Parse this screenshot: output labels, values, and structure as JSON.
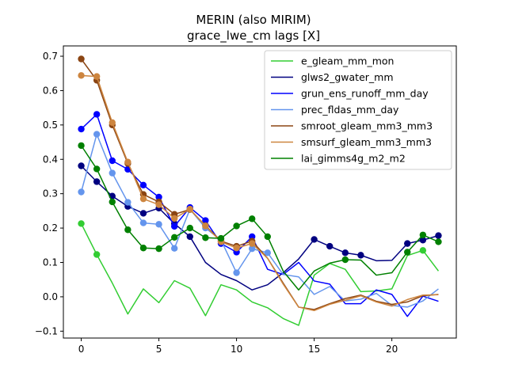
{
  "chart_data": {
    "type": "line",
    "title": "MERIN (also MIRIM)",
    "subtitle": "grace_lwe_cm lags [X]",
    "xlabel": "",
    "ylabel": "",
    "xlim": [
      -1.15,
      24.15
    ],
    "ylim": [
      -0.12,
      0.73
    ],
    "xticks": [
      0,
      5,
      10,
      15,
      20
    ],
    "yticks": [
      -0.1,
      0.0,
      0.1,
      0.2,
      0.3,
      0.4,
      0.5,
      0.6,
      0.7
    ],
    "ytick_labels": [
      "−0.1",
      "0.0",
      "0.1",
      "0.2",
      "0.3",
      "0.4",
      "0.5",
      "0.6",
      "0.7"
    ],
    "legend_position": "upper right",
    "grid": false,
    "x": [
      0,
      1,
      2,
      3,
      4,
      5,
      6,
      7,
      8,
      9,
      10,
      11,
      12,
      13,
      14,
      15,
      16,
      17,
      18,
      19,
      20,
      21,
      22,
      23
    ],
    "series": [
      {
        "name": "e_gleam_mm_mon",
        "color": "#32cd32",
        "values": [
          0.213,
          0.123,
          0.04,
          -0.05,
          0.023,
          -0.017,
          0.047,
          0.025,
          -0.055,
          0.035,
          0.02,
          -0.015,
          -0.032,
          -0.063,
          -0.083,
          0.063,
          0.097,
          0.08,
          0.015,
          0.017,
          0.023,
          0.12,
          0.135,
          0.075
        ],
        "markers": [
          0,
          1,
          22
        ]
      },
      {
        "name": "glws2_gwater_mm",
        "color": "#000080",
        "values": [
          0.381,
          0.335,
          0.293,
          0.263,
          0.243,
          0.258,
          0.213,
          0.175,
          0.1,
          0.065,
          0.047,
          0.02,
          0.035,
          0.07,
          0.11,
          0.167,
          0.147,
          0.128,
          0.121,
          0.105,
          0.106,
          0.155,
          0.165,
          0.178
        ],
        "markers": [
          0,
          1,
          2,
          3,
          4,
          5,
          6,
          7,
          15,
          16,
          17,
          18,
          21,
          22,
          23
        ]
      },
      {
        "name": "grun_ens_runoff_mm_day",
        "color": "#0000ff",
        "values": [
          0.488,
          0.531,
          0.396,
          0.371,
          0.325,
          0.29,
          0.205,
          0.26,
          0.222,
          0.155,
          0.13,
          0.175,
          0.08,
          0.065,
          0.1,
          0.046,
          0.037,
          -0.02,
          -0.02,
          0.02,
          0.007,
          -0.057,
          0.002,
          -0.013
        ],
        "markers": [
          0,
          1,
          2,
          3,
          4,
          5,
          6,
          7,
          8,
          9,
          10,
          11
        ]
      },
      {
        "name": "prec_fldas_mm_day",
        "color": "#6495ed",
        "values": [
          0.305,
          0.473,
          0.36,
          0.275,
          0.215,
          0.211,
          0.141,
          0.255,
          0.2,
          0.165,
          0.07,
          0.14,
          0.128,
          0.065,
          0.058,
          0.007,
          0.03,
          -0.012,
          -0.007,
          0.01,
          -0.025,
          -0.03,
          -0.012,
          0.023
        ],
        "markers": [
          0,
          1,
          2,
          3,
          4,
          5,
          6,
          7,
          8,
          9,
          10,
          11,
          12
        ]
      },
      {
        "name": "smroot_gleam_mm3_mm3",
        "color": "#8b4513",
        "values": [
          0.692,
          0.63,
          0.5,
          0.388,
          0.298,
          0.276,
          0.24,
          0.254,
          0.207,
          0.162,
          0.147,
          0.162,
          0.112,
          0.04,
          -0.03,
          -0.037,
          -0.02,
          -0.005,
          0.005,
          -0.013,
          -0.022,
          -0.015,
          0.003,
          0.007
        ],
        "markers": [
          0,
          1,
          2,
          3,
          4,
          5,
          6,
          7,
          8,
          9,
          10,
          11
        ]
      },
      {
        "name": "smsurf_gleam_mm3_mm3",
        "color": "#cd853f",
        "values": [
          0.644,
          0.641,
          0.507,
          0.392,
          0.285,
          0.268,
          0.228,
          0.255,
          0.206,
          0.16,
          0.142,
          0.155,
          0.112,
          0.037,
          -0.03,
          -0.04,
          -0.022,
          -0.01,
          0.003,
          -0.015,
          -0.027,
          -0.008,
          0.005,
          0.006
        ],
        "markers": [
          0,
          1,
          2,
          3,
          4,
          5,
          6,
          7,
          8,
          9,
          10,
          11
        ]
      },
      {
        "name": "lai_gimms4g_m2_m2",
        "color": "#008000",
        "values": [
          0.44,
          0.372,
          0.276,
          0.195,
          0.142,
          0.14,
          0.173,
          0.2,
          0.172,
          0.17,
          0.206,
          0.227,
          0.175,
          0.075,
          0.02,
          0.075,
          0.098,
          0.108,
          0.107,
          0.063,
          0.07,
          0.13,
          0.18,
          0.16
        ],
        "markers": [
          0,
          1,
          2,
          3,
          4,
          5,
          6,
          7,
          8,
          9,
          10,
          11,
          12,
          17,
          21,
          22,
          23
        ]
      }
    ]
  }
}
